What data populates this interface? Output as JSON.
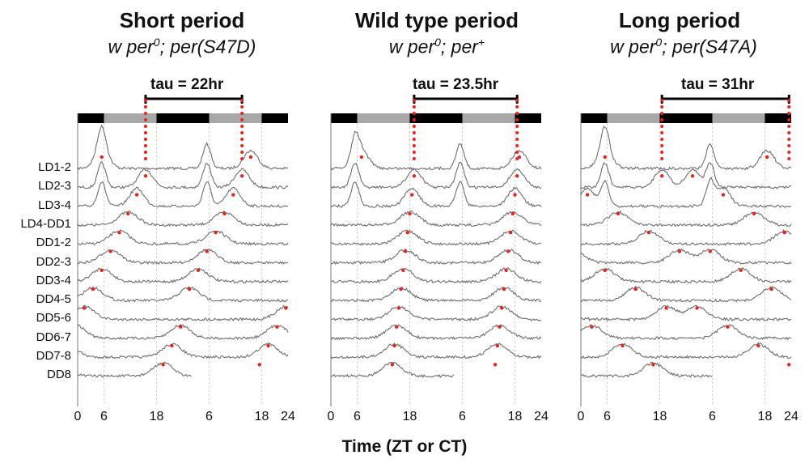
{
  "chart_data": [
    {
      "type": "line",
      "title": "Short period",
      "subtitle_prefix": "w per",
      "subtitle_sup": "0",
      "subtitle_suffix": "; per(S47D)",
      "tau_label": "tau = 22hr",
      "tau_hours": 22,
      "x_ticks": [
        "0",
        "6",
        "18",
        "6",
        "18",
        "24"
      ],
      "peak_hours": [
        5.5,
        15.5,
        13.5,
        11.5,
        9.5,
        7.5,
        5.5,
        3.5,
        1.5,
        23.5,
        21.5,
        19.5,
        17.5,
        15.5
      ]
    },
    {
      "type": "line",
      "title": "Wild type period",
      "subtitle_prefix": "w per",
      "subtitle_sup": "0",
      "subtitle_suffix": "; per",
      "subtitle_sup2": "+",
      "tau_label": "tau = 23.5hr",
      "tau_hours": 23.5,
      "x_ticks": [
        "0",
        "6",
        "18",
        "6",
        "18",
        "24"
      ],
      "peak_hours": [
        7,
        19,
        18.5,
        18,
        17.5,
        17,
        16.5,
        16,
        15.5,
        15,
        14.5,
        14,
        13.5,
        13
      ]
    },
    {
      "type": "line",
      "title": "Long period",
      "subtitle_prefix": "w per",
      "subtitle_sup": "0",
      "subtitle_suffix": "; per(S47A)",
      "tau_label": "tau = 31hr",
      "tau_hours": 31,
      "x_ticks": [
        "0",
        "6",
        "18",
        "6",
        "18",
        "24"
      ],
      "peak_hours": [
        5.5,
        18.5,
        1.5,
        8.5,
        15.5,
        22.5,
        5.5,
        12.5,
        19.5,
        2.5,
        9.5,
        16.5,
        23.5,
        6.5
      ]
    }
  ],
  "row_labels": [
    "LD1-2",
    "LD2-3",
    "LD3-4",
    "LD4-DD1",
    "DD1-2",
    "DD2-3",
    "DD3-4",
    "DD4-5",
    "DD5-6",
    "DD6-7",
    "DD7-8",
    "DD8"
  ],
  "x_axis_label": "Time (ZT or CT)",
  "colors": {
    "trace": "#6e6e6e",
    "peak_dots": "#e8231f",
    "bar_dark": "#000000",
    "bar_light": "#a8a8a8",
    "gridline": "#c8c8c8"
  }
}
